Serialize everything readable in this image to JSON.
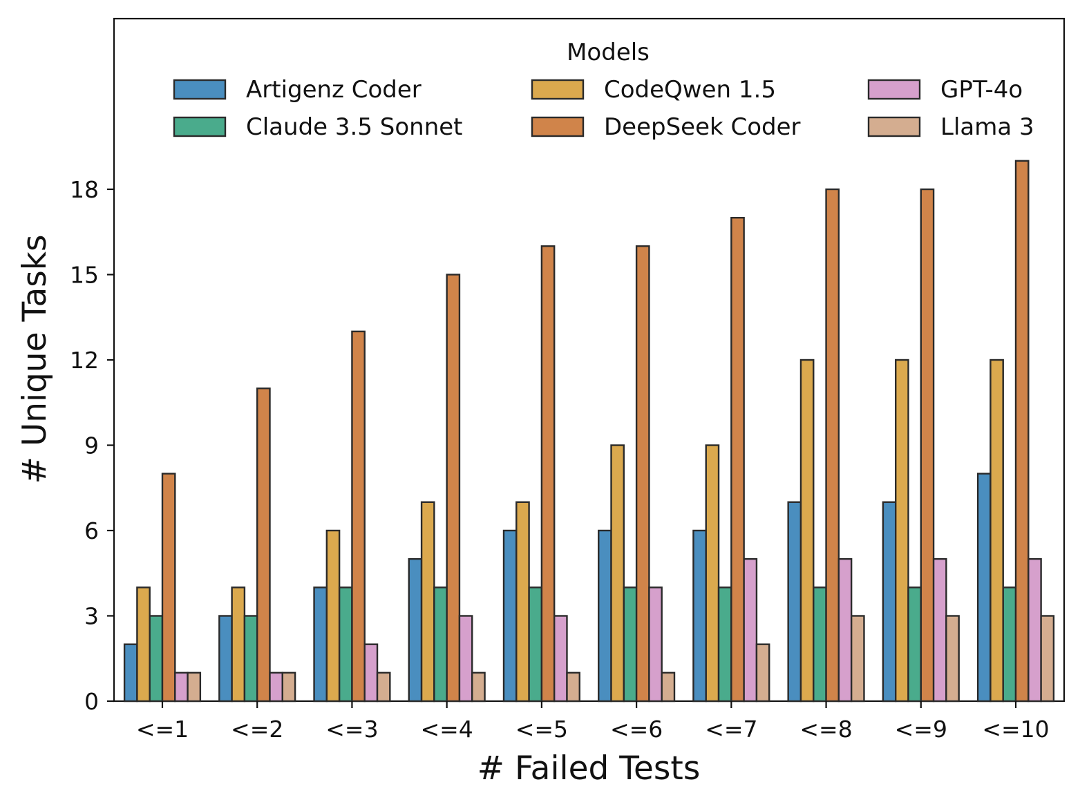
{
  "chart_data": {
    "type": "bar",
    "xlabel": "# Failed Tests",
    "ylabel": "# Unique Tasks",
    "ylim": [
      0,
      24
    ],
    "yticks": [
      0,
      3,
      6,
      9,
      12,
      15,
      18
    ],
    "categories": [
      "<=1",
      "<=2",
      "<=3",
      "<=4",
      "<=5",
      "<=6",
      "<=7",
      "<=8",
      "<=9",
      "<=10"
    ],
    "legend_title": "Models",
    "legend_position": "top",
    "series": [
      {
        "name": "Artigenz Coder",
        "color": "#4a8ebf",
        "values": [
          2,
          3,
          4,
          5,
          6,
          6,
          6,
          7,
          7,
          8
        ]
      },
      {
        "name": "CodeQwen 1.5",
        "color": "#dba94e",
        "values": [
          4,
          4,
          6,
          7,
          7,
          9,
          9,
          12,
          12,
          12
        ]
      },
      {
        "name": "Claude 3.5 Sonnet",
        "color": "#4aab8c",
        "values": [
          3,
          3,
          4,
          4,
          4,
          4,
          4,
          4,
          4,
          4
        ]
      },
      {
        "name": "DeepSeek Coder",
        "color": "#d0844a",
        "values": [
          8,
          11,
          13,
          15,
          16,
          16,
          17,
          18,
          18,
          19
        ]
      },
      {
        "name": "GPT-4o",
        "color": "#d6a0cc",
        "values": [
          1,
          1,
          2,
          3,
          3,
          4,
          5,
          5,
          5,
          5
        ]
      },
      {
        "name": "Llama 3",
        "color": "#d4ad90",
        "values": [
          1,
          1,
          1,
          1,
          1,
          1,
          2,
          3,
          3,
          3
        ]
      }
    ],
    "legend_order": [
      "Artigenz Coder",
      "Claude 3.5 Sonnet",
      "CodeQwen 1.5",
      "DeepSeek Coder",
      "GPT-4o",
      "Llama 3"
    ]
  }
}
